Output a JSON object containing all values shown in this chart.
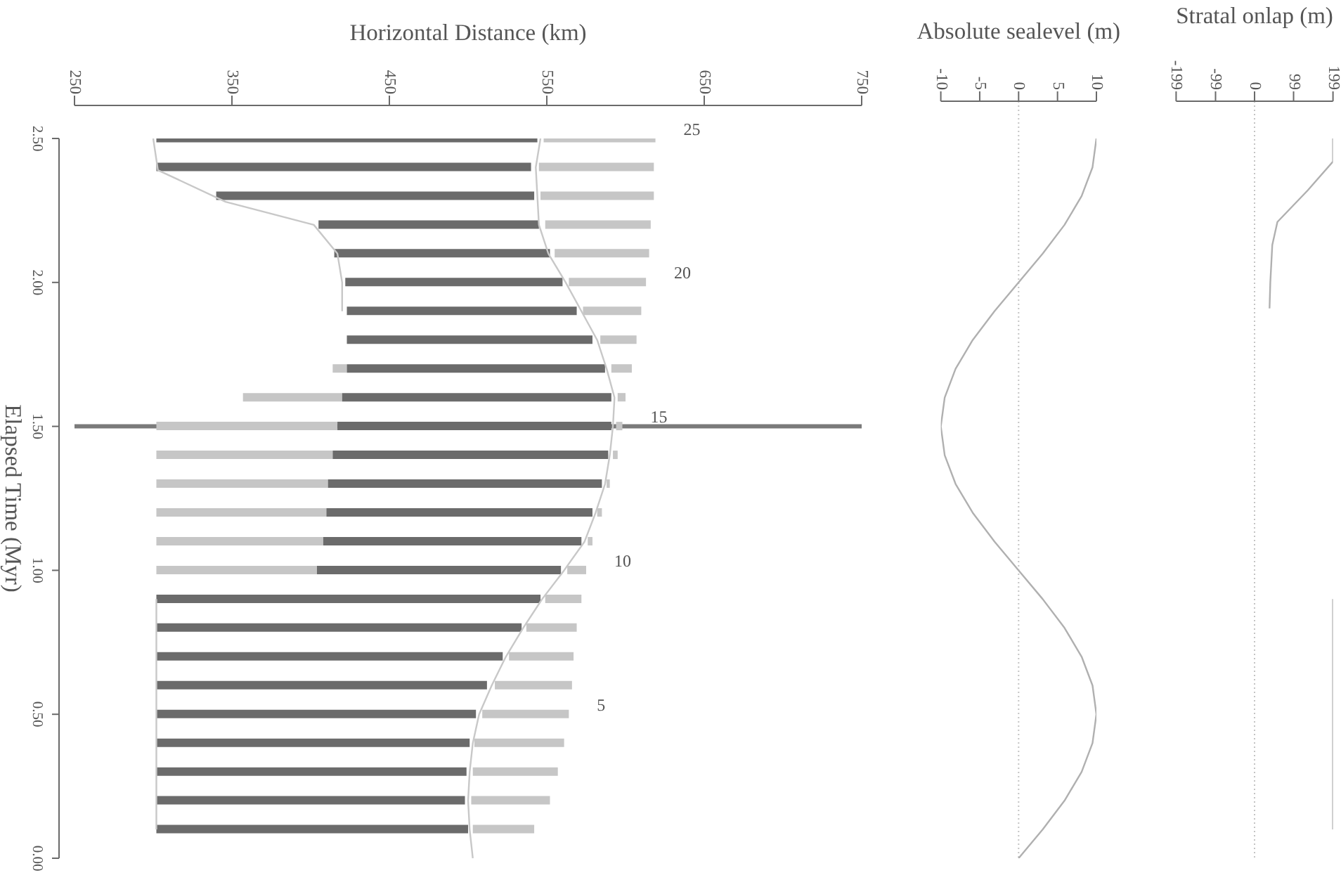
{
  "chart_data": [
    {
      "type": "bar",
      "orientation": "horizontal",
      "xlabel": "Horizontal Distance (km)",
      "ylabel": "Elapsed Time (Myr)",
      "x": [
        0.1,
        0.2,
        0.3,
        0.4,
        0.5,
        0.6,
        0.7,
        0.8,
        0.9,
        1.0,
        1.1,
        1.2,
        1.3,
        1.4,
        1.5,
        1.6,
        1.7,
        1.8,
        1.9,
        2.0,
        2.1,
        2.2,
        2.3,
        2.4,
        2.5
      ],
      "xlim": [
        250,
        750
      ],
      "xticks": [
        250,
        350,
        450,
        550,
        650,
        750
      ],
      "ylim": [
        0,
        2.5
      ],
      "yticks": [
        {
          "value": 0,
          "label": "0.00"
        },
        {
          "value": 0.5,
          "label": "0.50"
        },
        {
          "value": 1,
          "label": "1.00"
        },
        {
          "value": 1.5,
          "label": "1.50"
        },
        {
          "value": 2,
          "label": "2.00"
        },
        {
          "value": 2.5,
          "label": "2.50"
        }
      ],
      "series": [
        {
          "color": "#c6c6c6",
          "base": [
            null,
            null,
            null,
            null,
            null,
            null,
            null,
            null,
            null,
            302,
            302,
            302,
            302,
            302,
            302,
            357,
            414,
            null,
            null,
            null,
            null,
            null,
            null,
            null,
            null
          ],
          "values": [
            null,
            null,
            null,
            null,
            null,
            null,
            null,
            null,
            null,
            102,
            106,
            108,
            109,
            112,
            115,
            63,
            9,
            null,
            null,
            null,
            null,
            null,
            null,
            null,
            null
          ]
        },
        {
          "color": "#6b6b6b",
          "base": [
            302,
            302,
            302,
            302,
            302,
            302,
            302,
            302,
            302,
            404,
            408,
            410,
            411,
            414,
            417,
            420,
            423,
            423,
            423,
            422,
            415,
            405,
            340,
            302,
            302
          ],
          "values": [
            198,
            196,
            197,
            199,
            203,
            210,
            220,
            232,
            244,
            155,
            164,
            169,
            174,
            175,
            174,
            171,
            164,
            156,
            146,
            138,
            137,
            140,
            202,
            238,
            242
          ]
        },
        {
          "color": "#c6c6c6",
          "base": [
            503,
            502,
            503,
            504,
            509,
            517,
            526,
            537,
            549,
            563,
            576,
            582,
            588,
            592,
            594,
            595,
            591,
            584,
            573,
            564,
            555,
            549,
            546,
            545,
            548
          ],
          "values": [
            39,
            50,
            54,
            57,
            55,
            49,
            41,
            32,
            23,
            12,
            3,
            3,
            2,
            3,
            4,
            5,
            13,
            23,
            37,
            49,
            60,
            67,
            72,
            73,
            71
          ]
        },
        {
          "type": "line",
          "color": "#c8c8c8",
          "x": [
            0.1,
            0.9
          ],
          "values": [
            302,
            302
          ]
        },
        {
          "type": "line",
          "color": "#c8c8c8",
          "x": [
            1.9,
            2.0,
            2.1,
            2.2,
            2.28,
            2.39,
            2.5
          ],
          "values": [
            420,
            420,
            417,
            402,
            346,
            303,
            300
          ]
        },
        {
          "type": "line",
          "color": "#c8c8c8",
          "x": [
            0,
            0.1,
            0.2,
            0.3,
            0.4,
            0.5,
            0.6,
            0.7,
            0.8,
            0.9,
            1.0,
            1.1,
            1.2,
            1.3,
            1.4,
            1.5,
            1.6,
            1.7,
            1.8,
            1.9,
            2.0,
            2.1,
            2.2,
            2.3,
            2.4,
            2.5
          ],
          "values": [
            503,
            501,
            500,
            501,
            503,
            507,
            515,
            524,
            535,
            547,
            561,
            574,
            581,
            587,
            590,
            592,
            593,
            588,
            582,
            572,
            562,
            551,
            545,
            544,
            543,
            546
          ]
        }
      ],
      "ref_lines": [
        {
          "axis": "y",
          "value": 1.5,
          "color": "#7a7a7a"
        }
      ],
      "annotations": [
        {
          "text": "25",
          "x": 619,
          "y": 2.5
        },
        {
          "text": "20",
          "x": 613,
          "y": 2
        },
        {
          "text": "15",
          "x": 598,
          "y": 1.5
        },
        {
          "text": "10",
          "x": 575,
          "y": 1
        },
        {
          "text": "5",
          "x": 564,
          "y": 0.5
        }
      ]
    },
    {
      "type": "line",
      "orientation": "horizontal",
      "xlabel": "Absolute sealevel (m)",
      "color": "#b0b0b0",
      "x": [
        0,
        0.1,
        0.2,
        0.3,
        0.4,
        0.5,
        0.6,
        0.7,
        0.8,
        0.9,
        1.0,
        1.1,
        1.2,
        1.3,
        1.4,
        1.5,
        1.6,
        1.7,
        1.8,
        1.9,
        2.0,
        2.1,
        2.2,
        2.3,
        2.4,
        2.5
      ],
      "values": [
        0,
        3.1,
        5.9,
        8.1,
        9.5,
        10,
        9.5,
        8.1,
        5.9,
        3.1,
        0,
        -3.1,
        -5.9,
        -8.1,
        -9.5,
        -10,
        -9.5,
        -8.1,
        -5.9,
        -3.1,
        0,
        3.1,
        5.9,
        8.1,
        9.5,
        10
      ],
      "xlim": [
        -10,
        10
      ],
      "xticks": [
        -10,
        -5,
        0,
        5,
        10
      ],
      "ylim": [
        0,
        2.5
      ],
      "tick_labels": "x",
      "ref_lines": [
        {
          "axis": "x",
          "value": 0,
          "color": "#c4c4c4",
          "line_style": "dotted"
        }
      ]
    },
    {
      "type": "line",
      "orientation": "horizontal",
      "xlabel": "Stratal onlap (m)",
      "series": [
        {
          "color": "#b0b0b0",
          "x": [
            0.1,
            0.5,
            0.9
          ],
          "values": [
            199,
            199,
            199
          ]
        },
        {
          "color": "#b0b0b0",
          "x": [
            1.91,
            2.0,
            2.13,
            2.21,
            2.32,
            2.42,
            2.5
          ],
          "values": [
            38,
            40,
            45,
            58,
            135,
            199,
            199
          ]
        }
      ],
      "xlim": [
        -199,
        199
      ],
      "xticks": [
        -199,
        -99,
        0,
        99,
        199
      ],
      "ylim": [
        0,
        2.5
      ],
      "tick_labels": "x",
      "ref_lines": [
        {
          "axis": "x",
          "value": 0,
          "color": "#c4c4c4",
          "line_style": "dotted"
        }
      ]
    }
  ]
}
